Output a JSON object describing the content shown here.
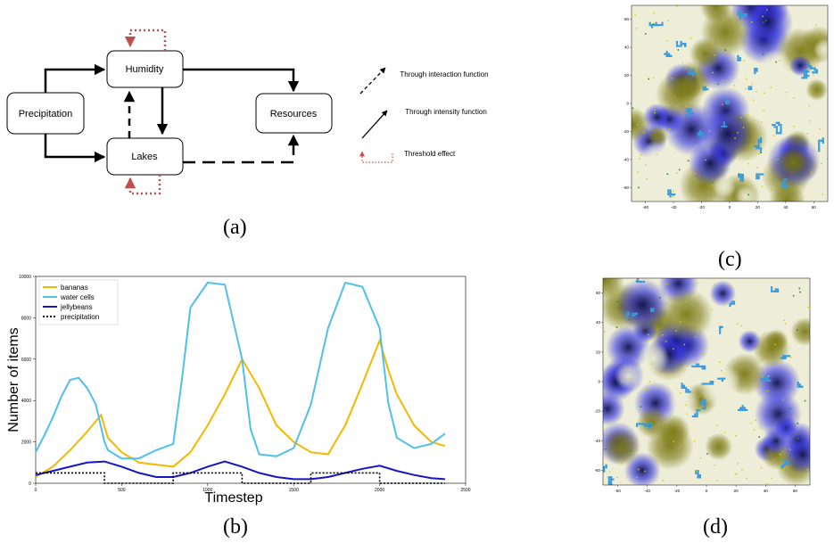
{
  "captions": {
    "a": "(a)",
    "b": "(b)",
    "c": "(c)",
    "d": "(d)"
  },
  "diagram": {
    "nodes": {
      "precipitation": "Precipitation",
      "humidity": "Humidity",
      "lakes": "Lakes",
      "resources": "Resources"
    },
    "legend": {
      "interaction": "Through interaction function",
      "intensity": "Through intensity function",
      "threshold": "Threshold effect"
    },
    "colors": {
      "threshold": "#c0504d",
      "edge": "#000000"
    }
  },
  "chart_data": {
    "type": "line",
    "xlabel": "Timestep",
    "ylabel": "Number of items",
    "xlim": [
      0,
      2500
    ],
    "ylim": [
      0,
      10000
    ],
    "xticks": [
      0,
      500,
      1000,
      1500,
      2000,
      2500
    ],
    "yticks": [
      0,
      2000,
      4000,
      6000,
      8000,
      10000
    ],
    "legend_position": "top-left",
    "series": [
      {
        "name": "bananas",
        "color": "#f5b800",
        "style": "solid",
        "x": [
          0,
          100,
          200,
          300,
          380,
          420,
          500,
          600,
          700,
          800,
          900,
          1000,
          1100,
          1200,
          1300,
          1400,
          1500,
          1600,
          1700,
          1800,
          1900,
          2000,
          2050,
          2100,
          2200,
          2300,
          2380
        ],
        "y": [
          300,
          800,
          1600,
          2500,
          3300,
          2200,
          1500,
          1000,
          900,
          800,
          1500,
          2800,
          4300,
          6000,
          4600,
          2800,
          2000,
          1500,
          1400,
          2800,
          4800,
          6900,
          5500,
          4300,
          2800,
          2000,
          1800
        ]
      },
      {
        "name": "water cells",
        "color": "#4fc0ea",
        "style": "solid",
        "x": [
          0,
          50,
          100,
          150,
          200,
          250,
          300,
          350,
          400,
          420,
          500,
          600,
          700,
          800,
          850,
          900,
          1000,
          1100,
          1200,
          1250,
          1300,
          1400,
          1500,
          1600,
          1700,
          1800,
          1900,
          2000,
          2050,
          2100,
          2200,
          2300,
          2380
        ],
        "y": [
          1500,
          2300,
          3200,
          4200,
          5000,
          5100,
          4600,
          3800,
          2000,
          1600,
          1200,
          1200,
          1600,
          1900,
          5000,
          8500,
          9700,
          9600,
          6000,
          2600,
          1400,
          1300,
          1700,
          3800,
          7500,
          9700,
          9500,
          7500,
          3900,
          2200,
          1700,
          1900,
          2400
        ]
      },
      {
        "name": "jellybeans",
        "color": "#1515c8",
        "style": "solid",
        "x": [
          0,
          100,
          200,
          300,
          400,
          500,
          600,
          700,
          800,
          900,
          1000,
          1100,
          1200,
          1300,
          1400,
          1500,
          1600,
          1700,
          1800,
          1900,
          2000,
          2100,
          2200,
          2300,
          2380
        ],
        "y": [
          400,
          600,
          800,
          1000,
          1050,
          800,
          500,
          300,
          300,
          500,
          800,
          1050,
          800,
          500,
          300,
          200,
          200,
          300,
          500,
          700,
          850,
          600,
          400,
          250,
          200
        ]
      },
      {
        "name": "precipitation",
        "color": "#000000",
        "style": "dotted",
        "x": [
          0,
          400,
          400,
          800,
          800,
          1200,
          1200,
          1600,
          1600,
          2000,
          2000,
          2380
        ],
        "y": [
          500,
          500,
          0,
          0,
          500,
          500,
          0,
          0,
          500,
          500,
          0,
          0
        ]
      }
    ]
  },
  "maps": {
    "c": {
      "xticks": [
        "-60",
        "-40",
        "-20",
        "0",
        "20",
        "40",
        "60"
      ],
      "yticks": [
        "60",
        "40",
        "20",
        "0",
        "-20",
        "-40",
        "-60"
      ],
      "colors": {
        "water": "#3a9ad9",
        "banana": "#c8d200",
        "jelly": "#2e2ee0",
        "green": "#2e8b2e",
        "olive": "#7c7a14",
        "sand": "#eeeed8"
      }
    },
    "d": {
      "xticks": [
        "-60",
        "-40",
        "-20",
        "0",
        "20",
        "40",
        "60"
      ],
      "yticks": [
        "60",
        "40",
        "20",
        "0",
        "-20",
        "-40",
        "-60"
      ],
      "colors": {
        "water": "#3a9ad9",
        "banana": "#c8d200",
        "jelly": "#2e2ee0",
        "green": "#2e8b2e",
        "olive": "#7c7a14",
        "sand": "#eeeed8"
      }
    }
  }
}
